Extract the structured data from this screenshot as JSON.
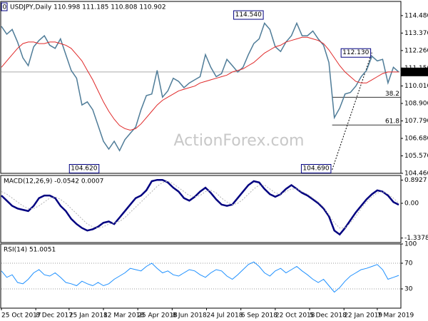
{
  "chart_data": [
    {
      "type": "line",
      "title": "USDJPY,Daily  110.998 111.185 110.808 110.902",
      "watermark": "ActionForex.com",
      "marker_label": "0",
      "x": [
        0,
        5,
        10,
        15,
        20,
        25,
        30,
        35,
        40,
        45,
        50,
        55,
        60,
        65,
        70,
        75,
        80,
        85,
        90,
        95,
        100,
        105,
        110,
        115,
        120,
        125,
        130,
        135,
        140,
        145,
        150,
        155,
        160,
        165,
        170,
        175,
        180,
        185,
        190,
        195,
        200,
        205,
        210,
        215,
        220,
        225,
        230,
        235,
        240,
        245,
        250,
        255,
        260,
        265,
        270,
        275,
        280,
        285,
        290,
        295,
        300,
        305,
        310,
        315,
        320,
        325,
        330,
        335,
        340,
        345,
        350,
        355,
        360,
        365,
        370
      ],
      "xlim": [
        0,
        372
      ],
      "xticks": [
        {
          "value": 0,
          "label": "25 Oct 2017"
        },
        {
          "value": 32,
          "label": "8 Dec 2017"
        },
        {
          "value": 63,
          "label": "25 Jan 2018"
        },
        {
          "value": 95,
          "label": "12 Mar 2018"
        },
        {
          "value": 127,
          "label": "25 Apr 2018"
        },
        {
          "value": 159,
          "label": "8 Jun 2018"
        },
        {
          "value": 191,
          "label": "24 Jul 2018"
        },
        {
          "value": 223,
          "label": "6 Sep 2018"
        },
        {
          "value": 255,
          "label": "22 Oct 2018"
        },
        {
          "value": 287,
          "label": "5 Dec 2018"
        },
        {
          "value": 319,
          "label": "22 Jan 2019"
        },
        {
          "value": 350,
          "label": "7 Mar 2019"
        }
      ],
      "ylim": [
        104.46,
        115.38
      ],
      "yticks": [
        {
          "value": 114.48,
          "label": "114.480"
        },
        {
          "value": 113.37,
          "label": "113.370"
        },
        {
          "value": 112.26,
          "label": "112.260"
        },
        {
          "value": 111.15,
          "label": "111.150"
        },
        {
          "value": 110.01,
          "label": "110.010"
        },
        {
          "value": 108.9,
          "label": "108.900"
        },
        {
          "value": 107.79,
          "label": "107.790"
        },
        {
          "value": 106.68,
          "label": "106.680"
        },
        {
          "value": 105.57,
          "label": "105.570"
        },
        {
          "value": 104.46,
          "label": "104.460"
        }
      ],
      "series": [
        {
          "color": "#4f7c98",
          "values": [
            113.8,
            113.3,
            113.6,
            112.8,
            111.8,
            111.3,
            112.5,
            112.9,
            113.2,
            112.6,
            112.4,
            113.0,
            112.0,
            111.0,
            110.5,
            108.8,
            109.0,
            108.5,
            107.5,
            106.5,
            106.0,
            106.5,
            105.9,
            106.6,
            107.0,
            107.4,
            108.5,
            109.4,
            109.5,
            111.0,
            109.3,
            109.7,
            110.5,
            110.3,
            109.9,
            110.2,
            110.4,
            110.6,
            112.0,
            111.2,
            110.6,
            110.8,
            111.7,
            111.3,
            110.9,
            111.2,
            112.0,
            112.7,
            113.0,
            114.0,
            113.6,
            112.5,
            112.2,
            112.8,
            113.2,
            114.0,
            113.2,
            113.2,
            113.5,
            113.0,
            112.6,
            111.5,
            108.0,
            108.6,
            109.5,
            109.6,
            110.0,
            110.6,
            111.0,
            111.9,
            111.6,
            111.7,
            110.2,
            111.2,
            110.9
          ]
        },
        {
          "color": "#e02828",
          "values": [
            111.2,
            111.6,
            112.0,
            112.4,
            112.7,
            112.8,
            112.8,
            112.7,
            112.7,
            112.8,
            112.8,
            112.7,
            112.6,
            112.4,
            112.0,
            111.6,
            111.0,
            110.4,
            109.7,
            109.0,
            108.4,
            107.9,
            107.5,
            107.3,
            107.2,
            107.3,
            107.6,
            108.0,
            108.4,
            108.8,
            109.1,
            109.3,
            109.5,
            109.7,
            109.8,
            109.9,
            110.0,
            110.2,
            110.3,
            110.4,
            110.5,
            110.6,
            110.7,
            110.9,
            111.0,
            111.1,
            111.3,
            111.5,
            111.8,
            112.1,
            112.3,
            112.5,
            112.6,
            112.8,
            112.9,
            113.0,
            113.1,
            113.1,
            113.0,
            112.9,
            112.7,
            112.3,
            111.8,
            111.3,
            110.9,
            110.6,
            110.3,
            110.2,
            110.2,
            110.4,
            110.6,
            110.8,
            110.9,
            110.9,
            110.9
          ]
        }
      ],
      "annotations": [
        {
          "label": "114.540",
          "value": 114.54,
          "x": 245
        },
        {
          "label": "112.130",
          "value": 112.13,
          "x": 345
        },
        {
          "label": "104.620",
          "value": 104.62,
          "x": 92
        },
        {
          "label": "104.690",
          "value": 104.69,
          "x": 308
        }
      ],
      "fib": {
        "from": {
          "x": 308,
          "value": 104.69
        },
        "to": {
          "x": 345,
          "value": 112.13
        },
        "levels": [
          {
            "label": "38.2",
            "value": 109.29
          },
          {
            "label": "61.8",
            "value": 107.53
          }
        ]
      },
      "last": {
        "label": "110.902",
        "value": 110.902
      }
    },
    {
      "type": "line",
      "title": "MACD(12,26,9) -0.0542 0.0007",
      "x": [
        0,
        5,
        10,
        15,
        20,
        25,
        30,
        35,
        40,
        45,
        50,
        55,
        60,
        65,
        70,
        75,
        80,
        85,
        90,
        95,
        100,
        105,
        110,
        115,
        120,
        125,
        130,
        135,
        140,
        145,
        150,
        155,
        160,
        165,
        170,
        175,
        180,
        185,
        190,
        195,
        200,
        205,
        210,
        215,
        220,
        225,
        230,
        235,
        240,
        245,
        250,
        255,
        260,
        265,
        270,
        275,
        280,
        285,
        290,
        295,
        300,
        305,
        310,
        315,
        320,
        325,
        330,
        335,
        340,
        345,
        350,
        355,
        360,
        365,
        370
      ],
      "xlim": [
        0,
        372
      ],
      "ylim": [
        -1.51,
        1.07
      ],
      "yticks": [
        {
          "value": 0.8927,
          "label": "0.8927"
        },
        {
          "value": 0,
          "label": "0.00"
        },
        {
          "value": -1.3378,
          "label": "-1.3378"
        }
      ],
      "series": [
        {
          "color": "#000080",
          "values": [
            0.3,
            0.1,
            -0.1,
            -0.2,
            -0.25,
            -0.3,
            -0.1,
            0.2,
            0.3,
            0.3,
            0.2,
            -0.1,
            -0.3,
            -0.6,
            -0.8,
            -0.95,
            -1.05,
            -1.0,
            -0.9,
            -0.75,
            -0.7,
            -0.8,
            -0.55,
            -0.3,
            -0.05,
            0.2,
            0.3,
            0.5,
            0.85,
            0.9,
            0.9,
            0.8,
            0.6,
            0.45,
            0.2,
            0.1,
            0.25,
            0.45,
            0.6,
            0.4,
            0.15,
            -0.05,
            -0.1,
            -0.05,
            0.2,
            0.45,
            0.7,
            0.85,
            0.8,
            0.55,
            0.35,
            0.25,
            0.35,
            0.55,
            0.7,
            0.55,
            0.4,
            0.3,
            0.15,
            0.0,
            -0.2,
            -0.5,
            -1.05,
            -1.2,
            -0.95,
            -0.65,
            -0.35,
            -0.1,
            0.15,
            0.35,
            0.5,
            0.45,
            0.3,
            0.05,
            -0.0542
          ]
        },
        {
          "color": "#b4b4b4",
          "values": [
            0.45,
            0.35,
            0.2,
            0.05,
            -0.1,
            -0.2,
            -0.2,
            -0.1,
            0.05,
            0.2,
            0.25,
            0.15,
            0.0,
            -0.2,
            -0.4,
            -0.6,
            -0.8,
            -0.9,
            -0.95,
            -0.9,
            -0.8,
            -0.75,
            -0.7,
            -0.55,
            -0.35,
            -0.15,
            0.05,
            0.25,
            0.45,
            0.65,
            0.8,
            0.85,
            0.75,
            0.6,
            0.45,
            0.3,
            0.25,
            0.3,
            0.45,
            0.5,
            0.4,
            0.2,
            0.05,
            -0.05,
            0.0,
            0.15,
            0.35,
            0.55,
            0.7,
            0.7,
            0.55,
            0.4,
            0.35,
            0.45,
            0.55,
            0.55,
            0.45,
            0.35,
            0.2,
            0.05,
            -0.15,
            -0.45,
            -0.75,
            -0.95,
            -0.95,
            -0.75,
            -0.5,
            -0.2,
            0.05,
            0.25,
            0.4,
            0.45,
            0.35,
            0.2,
            0.0007
          ]
        }
      ]
    },
    {
      "type": "line",
      "title": "RSI(14) 51.0051",
      "x": [
        0,
        5,
        10,
        15,
        20,
        25,
        30,
        35,
        40,
        45,
        50,
        55,
        60,
        65,
        70,
        75,
        80,
        85,
        90,
        95,
        100,
        105,
        110,
        115,
        120,
        125,
        130,
        135,
        140,
        145,
        150,
        155,
        160,
        165,
        170,
        175,
        180,
        185,
        190,
        195,
        200,
        205,
        210,
        215,
        220,
        225,
        230,
        235,
        240,
        245,
        250,
        255,
        260,
        265,
        270,
        275,
        280,
        285,
        290,
        295,
        300,
        305,
        310,
        315,
        320,
        325,
        330,
        335,
        340,
        345,
        350,
        355,
        360,
        365,
        370
      ],
      "xlim": [
        0,
        372
      ],
      "ylim": [
        0,
        100
      ],
      "yticks": [
        100,
        70,
        30
      ],
      "grid": "dotted",
      "series": [
        {
          "color": "#1e90ff",
          "values": [
            58,
            48,
            52,
            40,
            38,
            45,
            55,
            60,
            52,
            50,
            55,
            48,
            40,
            38,
            35,
            42,
            38,
            35,
            40,
            35,
            38,
            45,
            50,
            55,
            62,
            60,
            58,
            65,
            70,
            62,
            55,
            58,
            52,
            50,
            55,
            60,
            58,
            52,
            48,
            55,
            60,
            58,
            50,
            45,
            52,
            60,
            68,
            72,
            65,
            55,
            50,
            58,
            62,
            55,
            60,
            65,
            58,
            52,
            45,
            40,
            45,
            35,
            25,
            32,
            42,
            50,
            55,
            60,
            62,
            65,
            68,
            60,
            45,
            48,
            51.0051
          ]
        }
      ]
    }
  ]
}
